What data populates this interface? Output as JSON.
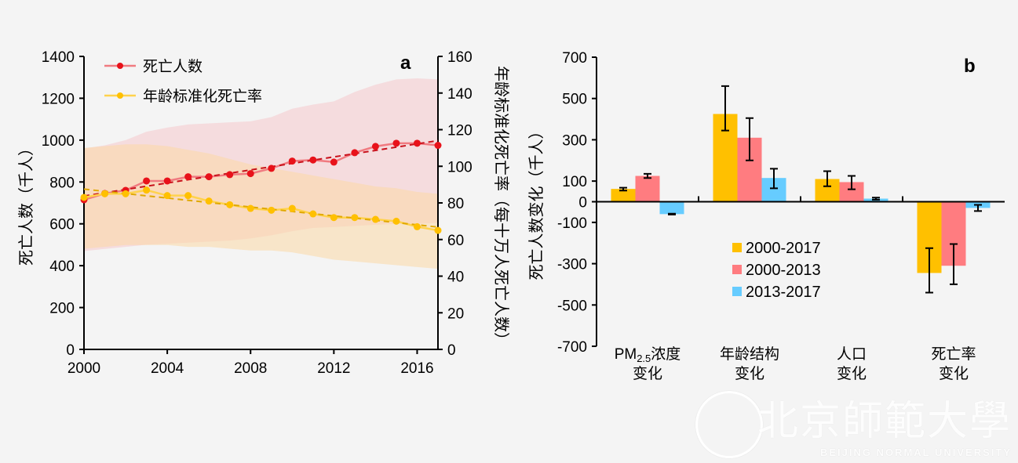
{
  "chart_data": [
    {
      "type": "line",
      "panel_label": "a",
      "x": [
        2000,
        2001,
        2002,
        2003,
        2004,
        2005,
        2006,
        2007,
        2008,
        2009,
        2010,
        2011,
        2012,
        2013,
        2014,
        2015,
        2016,
        2017
      ],
      "xticks": [
        "2000",
        "2004",
        "2008",
        "2012",
        "2016"
      ],
      "xlim": [
        2000,
        2017
      ],
      "ylabel": "死亡人数（千人）",
      "ylim": [
        0,
        1400
      ],
      "yticks": [
        "0",
        "200",
        "400",
        "600",
        "800",
        "1000",
        "1200",
        "1400"
      ],
      "y2label": "年龄标准化死亡率（每十万人死亡人数）",
      "y2lim": [
        0,
        160
      ],
      "y2ticks": [
        "0",
        "20",
        "40",
        "60",
        "80",
        "100",
        "120",
        "140",
        "160"
      ],
      "legend_position": "top-left",
      "series": [
        {
          "name": "死亡人数",
          "axis": "left",
          "color": "#e8121a",
          "line_color": "#f07a80",
          "trend_color": "#c8101a",
          "values": [
            715,
            745,
            760,
            805,
            805,
            825,
            825,
            835,
            840,
            865,
            900,
            905,
            895,
            940,
            970,
            985,
            985,
            975
          ],
          "band_upper": [
            960,
            975,
            1000,
            1040,
            1060,
            1075,
            1080,
            1085,
            1090,
            1110,
            1150,
            1170,
            1185,
            1230,
            1265,
            1290,
            1295,
            1290
          ],
          "band_lower": [
            470,
            480,
            490,
            500,
            505,
            510,
            515,
            520,
            530,
            545,
            565,
            580,
            585,
            590,
            595,
            600,
            600,
            605
          ],
          "band_color": "#f5c8cc"
        },
        {
          "name": "年龄标准化死亡率",
          "axis": "right",
          "color": "#ffc000",
          "line_color": "#ffd24d",
          "trend_color": "#e0a800",
          "values": [
            83,
            85,
            85,
            87,
            84,
            84,
            81,
            79,
            77,
            76,
            77,
            74,
            72,
            72,
            71,
            70,
            67,
            65
          ],
          "band_upper": [
            110,
            111,
            112,
            112,
            111,
            109,
            107,
            104,
            101,
            99,
            97,
            95,
            93,
            91,
            89,
            88,
            86,
            85
          ],
          "band_lower": [
            55,
            56,
            57,
            57,
            57,
            56,
            56,
            55,
            54,
            54,
            53,
            51,
            49,
            48,
            47,
            46,
            45,
            44
          ],
          "band_color": "#fbd9a6"
        }
      ]
    },
    {
      "type": "bar",
      "panel_label": "b",
      "categories": [
        [
          "PM",
          "2.5",
          "浓度",
          "变化"
        ],
        [
          "年龄结构",
          "",
          "",
          "变化"
        ],
        [
          "人口",
          "",
          "",
          "变化"
        ],
        [
          "死亡率",
          "",
          "",
          "变化"
        ]
      ],
      "ylabel": "死亡人数变化（千人）",
      "ylim": [
        -700,
        700
      ],
      "yticks": [
        "700",
        "500",
        "300",
        "100",
        "0",
        "-100",
        "-300",
        "-500",
        "-700"
      ],
      "legend_position": "bottom-center",
      "series": [
        {
          "name": "2000-2017",
          "color": "#ffc000",
          "values": [
            62,
            425,
            110,
            -345
          ],
          "err_low": [
            54,
            345,
            75,
            -440
          ],
          "err_high": [
            68,
            560,
            148,
            -225
          ]
        },
        {
          "name": "2000-2013",
          "color": "#ff7c80",
          "values": [
            125,
            310,
            95,
            -310
          ],
          "err_low": [
            115,
            200,
            60,
            -400
          ],
          "err_high": [
            135,
            405,
            125,
            -205
          ]
        },
        {
          "name": "2013-2017",
          "color": "#66ccff",
          "values": [
            -60,
            115,
            15,
            -30
          ],
          "err_low": [
            -62,
            65,
            10,
            -45
          ],
          "err_high": [
            -58,
            160,
            20,
            -15
          ]
        }
      ]
    }
  ],
  "watermark": {
    "cn": "北京師範大學",
    "en": "BEIJING NORMAL UNIVERSITY"
  }
}
